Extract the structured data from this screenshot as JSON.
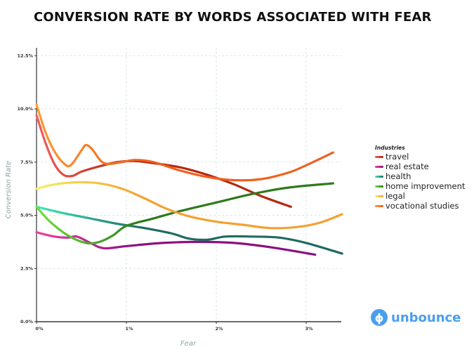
{
  "chart_data": {
    "type": "line",
    "title": "CONVERSION RATE BY WORDS ASSOCIATED WITH FEAR",
    "xlabel": "Fear",
    "ylabel": "Conversion Rate",
    "xlim": [
      0,
      3.4
    ],
    "ylim": [
      0,
      12.5
    ],
    "x_ticks": [
      "0%",
      "1%",
      "2%",
      "3%"
    ],
    "y_ticks": [
      "0.0%",
      "2.5%",
      "5.0%",
      "7.5%",
      "10.0%",
      "12.5%"
    ],
    "grid": true,
    "legend_title": "Industries",
    "legend_position": "right",
    "series": [
      {
        "name": "travel",
        "color": "#b5280f",
        "color_start": "#f06060",
        "x": [
          0,
          0.1,
          0.2,
          0.3,
          0.4,
          0.5,
          0.7,
          0.9,
          1.1,
          1.3,
          1.6,
          1.9,
          2.2,
          2.5,
          2.83
        ],
        "y": [
          9.7,
          8.4,
          7.4,
          6.9,
          6.85,
          7.05,
          7.3,
          7.5,
          7.55,
          7.45,
          7.25,
          6.9,
          6.45,
          5.9,
          5.4
        ]
      },
      {
        "name": "real estate",
        "color": "#8b1080",
        "color_start": "#f040a0",
        "x": [
          0,
          0.2,
          0.35,
          0.45,
          0.6,
          0.75,
          1.0,
          1.4,
          1.8,
          2.2,
          2.6,
          3.1
        ],
        "y": [
          4.2,
          4.0,
          3.95,
          4.0,
          3.7,
          3.45,
          3.55,
          3.7,
          3.75,
          3.7,
          3.5,
          3.15
        ]
      },
      {
        "name": "health",
        "color": "#1f6b60",
        "color_start": "#40e8c0",
        "x": [
          0,
          0.3,
          0.6,
          0.9,
          1.2,
          1.5,
          1.7,
          1.9,
          2.1,
          2.4,
          2.7,
          3.0,
          3.4
        ],
        "y": [
          5.4,
          5.1,
          4.85,
          4.6,
          4.4,
          4.15,
          3.9,
          3.85,
          4.0,
          4.0,
          3.95,
          3.7,
          3.2
        ]
      },
      {
        "name": "home improvement",
        "color": "#2e7a1a",
        "color_start": "#70e040",
        "x": [
          0,
          0.15,
          0.35,
          0.55,
          0.7,
          0.85,
          1.0,
          1.3,
          1.6,
          2.0,
          2.4,
          2.8,
          3.3
        ],
        "y": [
          5.4,
          4.7,
          4.05,
          3.7,
          3.75,
          4.05,
          4.5,
          4.85,
          5.2,
          5.6,
          6.0,
          6.3,
          6.5
        ]
      },
      {
        "name": "legal",
        "color": "#f5a030",
        "color_start": "#f0f060",
        "x": [
          0,
          0.2,
          0.45,
          0.7,
          0.95,
          1.2,
          1.45,
          1.7,
          2.0,
          2.3,
          2.6,
          2.9,
          3.15,
          3.4
        ],
        "y": [
          6.25,
          6.45,
          6.55,
          6.5,
          6.25,
          5.8,
          5.3,
          4.95,
          4.7,
          4.55,
          4.4,
          4.45,
          4.65,
          5.05
        ]
      },
      {
        "name": "vocational studies",
        "color": "#f06020",
        "color_start": "#ff9a30",
        "x": [
          0,
          0.1,
          0.2,
          0.3,
          0.38,
          0.5,
          0.55,
          0.62,
          0.75,
          0.95,
          1.1,
          1.3,
          1.6,
          1.9,
          2.2,
          2.5,
          2.8,
          3.0,
          3.3
        ],
        "y": [
          10.2,
          8.9,
          8.0,
          7.45,
          7.35,
          8.05,
          8.3,
          8.1,
          7.45,
          7.5,
          7.6,
          7.5,
          7.1,
          6.8,
          6.65,
          6.7,
          7.0,
          7.35,
          7.95
        ]
      }
    ]
  },
  "logo": {
    "glyph": "ϕ",
    "text": "unbounce"
  }
}
